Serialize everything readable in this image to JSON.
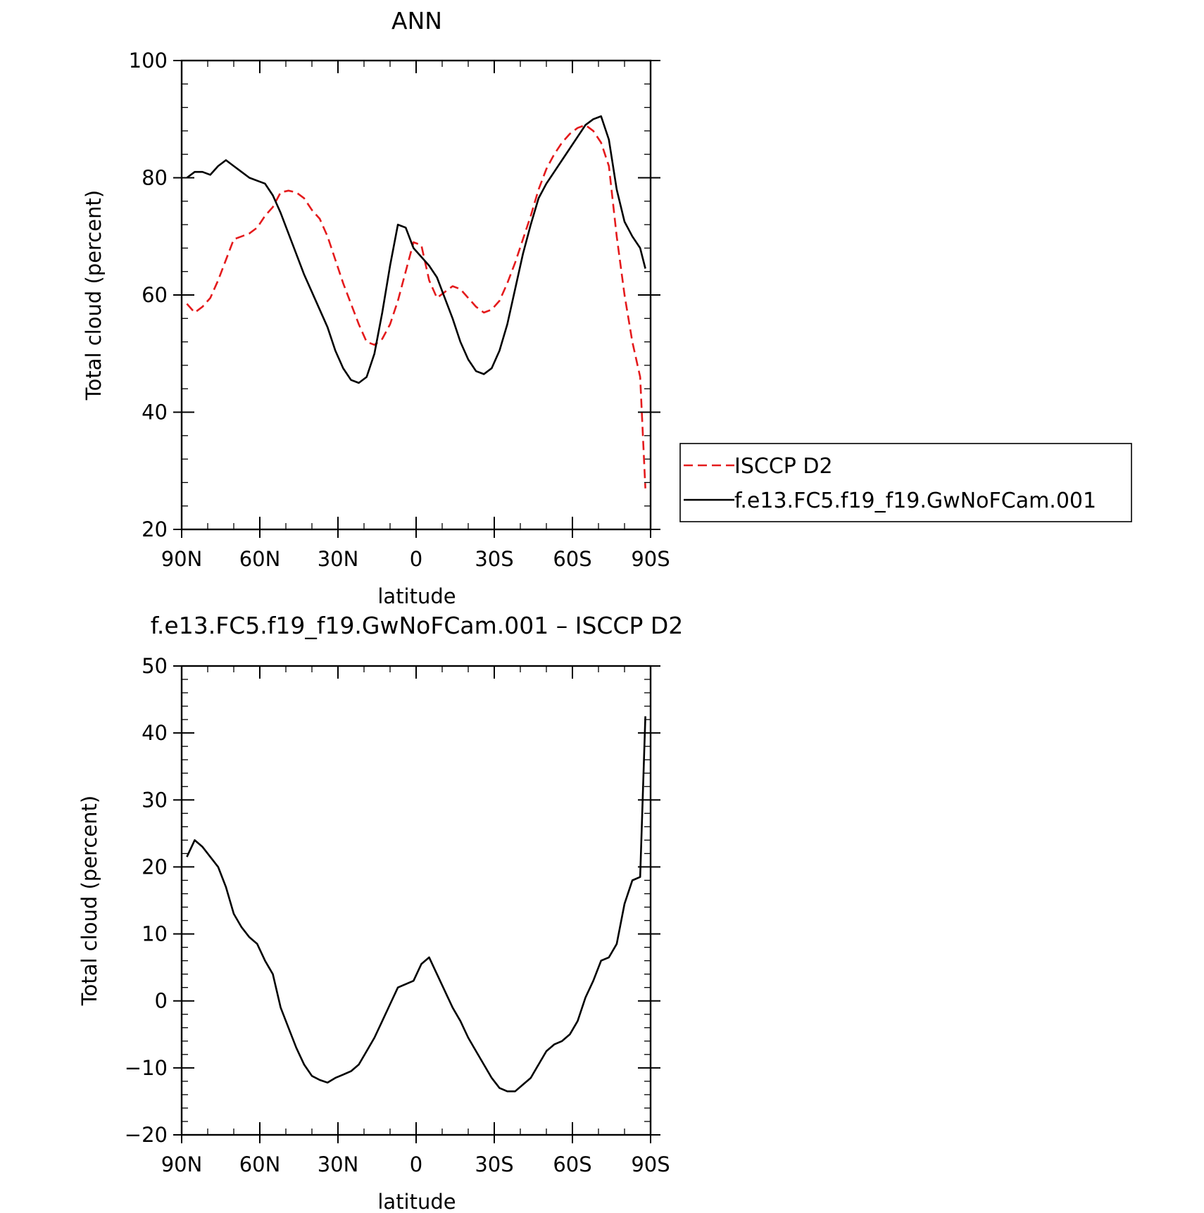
{
  "chart_data": [
    {
      "type": "line",
      "title": "ANN",
      "xlabel": "latitude",
      "ylabel": "Total cloud (percent)",
      "xlim": [
        90,
        -90
      ],
      "ylim": [
        20,
        100
      ],
      "xticks": [
        90,
        60,
        30,
        0,
        -30,
        -60,
        -90
      ],
      "xtick_labels": [
        "90N",
        "60N",
        "30N",
        "0",
        "30S",
        "60S",
        "90S"
      ],
      "yticks": [
        20,
        40,
        60,
        80,
        100
      ],
      "ytick_labels": [
        "20",
        "40",
        "60",
        "80",
        "100"
      ],
      "legend": {
        "placement": "right"
      },
      "series": [
        {
          "name": "ISCCP D2",
          "color": "#e41a1c",
          "dash": "dashed",
          "x": [
            88,
            85,
            82,
            79,
            76,
            73,
            70,
            67,
            64,
            61,
            58,
            55,
            52,
            49,
            46,
            43,
            40,
            37,
            34,
            31,
            28,
            25,
            22,
            19,
            16,
            13,
            10,
            7,
            4,
            1,
            -2,
            -5,
            -8,
            -11,
            -14,
            -17,
            -20,
            -23,
            -26,
            -29,
            -32,
            -35,
            -38,
            -41,
            -44,
            -47,
            -50,
            -53,
            -56,
            -59,
            -62,
            -65,
            -68,
            -71,
            -74,
            -77,
            -80,
            -83,
            -86,
            -88
          ],
          "y": [
            58.5,
            57,
            58,
            59.5,
            62.5,
            66,
            69.5,
            70,
            70.5,
            71.5,
            73.5,
            75,
            77.5,
            77.8,
            77.5,
            76.5,
            74.5,
            73,
            70,
            66,
            62,
            58.5,
            55,
            52,
            51.5,
            52.5,
            55,
            59,
            64,
            69,
            68.5,
            62.5,
            59.5,
            60.5,
            61.5,
            61,
            59.5,
            58,
            57,
            57.5,
            59,
            62,
            65.5,
            69.5,
            73.5,
            78,
            81.5,
            84,
            86,
            87.5,
            88.5,
            89,
            88,
            86,
            82,
            70,
            60,
            52,
            46,
            27
          ]
        },
        {
          "name": "f.e13.FC5.f19_f19.GwNoFCam.001",
          "color": "#000000",
          "dash": "solid",
          "x": [
            88,
            85,
            82,
            79,
            76,
            73,
            70,
            67,
            64,
            61,
            58,
            55,
            52,
            49,
            46,
            43,
            40,
            37,
            34,
            31,
            28,
            25,
            22,
            19,
            16,
            13,
            10,
            7,
            4,
            1,
            -2,
            -5,
            -8,
            -11,
            -14,
            -17,
            -20,
            -23,
            -26,
            -29,
            -32,
            -35,
            -38,
            -41,
            -44,
            -47,
            -50,
            -53,
            -56,
            -59,
            -62,
            -65,
            -68,
            -71,
            -74,
            -77,
            -80,
            -83,
            -86,
            -88
          ],
          "y": [
            80,
            81,
            81,
            80.5,
            82,
            83,
            82,
            81,
            80,
            79.5,
            79,
            77,
            74,
            70.5,
            67,
            63.5,
            60.5,
            57.5,
            54.5,
            50.5,
            47.5,
            45.5,
            45,
            46,
            50,
            57,
            65,
            72,
            71.5,
            68,
            66.5,
            65,
            63,
            59.5,
            56,
            52,
            49,
            47,
            46.5,
            47.5,
            50.5,
            55,
            61,
            67,
            72,
            76.5,
            79,
            81,
            83,
            85,
            87,
            89,
            90,
            90.5,
            86.5,
            78,
            72.5,
            70,
            68,
            64.5
          ]
        }
      ]
    },
    {
      "type": "line",
      "title": "f.e13.FC5.f19_f19.GwNoFCam.001 – ISCCP D2",
      "xlabel": "latitude",
      "ylabel": "Total cloud (percent)",
      "xlim": [
        90,
        -90
      ],
      "ylim": [
        -20,
        50
      ],
      "xticks": [
        90,
        60,
        30,
        0,
        -30,
        -60,
        -90
      ],
      "xtick_labels": [
        "90N",
        "60N",
        "30N",
        "0",
        "30S",
        "60S",
        "90S"
      ],
      "yticks": [
        -20,
        -10,
        0,
        10,
        20,
        30,
        40,
        50
      ],
      "ytick_labels": [
        "−20",
        "−10",
        "0",
        "10",
        "20",
        "30",
        "40",
        "50"
      ],
      "series": [
        {
          "color": "#000000",
          "dash": "solid",
          "x": [
            88,
            85,
            82,
            79,
            76,
            73,
            70,
            67,
            64,
            61,
            58,
            55,
            52,
            49,
            46,
            43,
            40,
            37,
            34,
            31,
            28,
            25,
            22,
            19,
            16,
            13,
            10,
            7,
            4,
            1,
            -2,
            -5,
            -8,
            -11,
            -14,
            -17,
            -20,
            -23,
            -26,
            -29,
            -32,
            -35,
            -38,
            -41,
            -44,
            -47,
            -50,
            -53,
            -56,
            -59,
            -62,
            -65,
            -68,
            -71,
            -74,
            -77,
            -80,
            -83,
            -86,
            -88
          ],
          "y": [
            21.5,
            24,
            23,
            21.5,
            20,
            17,
            13,
            11,
            9.5,
            8.5,
            6,
            4,
            -1,
            -4,
            -7,
            -9.5,
            -11.2,
            -11.8,
            -12.2,
            -11.5,
            -11,
            -10.5,
            -9.5,
            -7.5,
            -5.5,
            -3,
            -0.5,
            2,
            2.5,
            3,
            5.5,
            6.5,
            4,
            1.5,
            -1,
            -3,
            -5.5,
            -7.5,
            -9.5,
            -11.5,
            -13,
            -13.5,
            -13.5,
            -12.5,
            -11.5,
            -9.5,
            -7.5,
            -6.5,
            -6,
            -5,
            -3,
            0.5,
            3,
            6,
            6.5,
            8.5,
            14.5,
            18,
            18.5,
            42.5
          ]
        }
      ]
    }
  ]
}
